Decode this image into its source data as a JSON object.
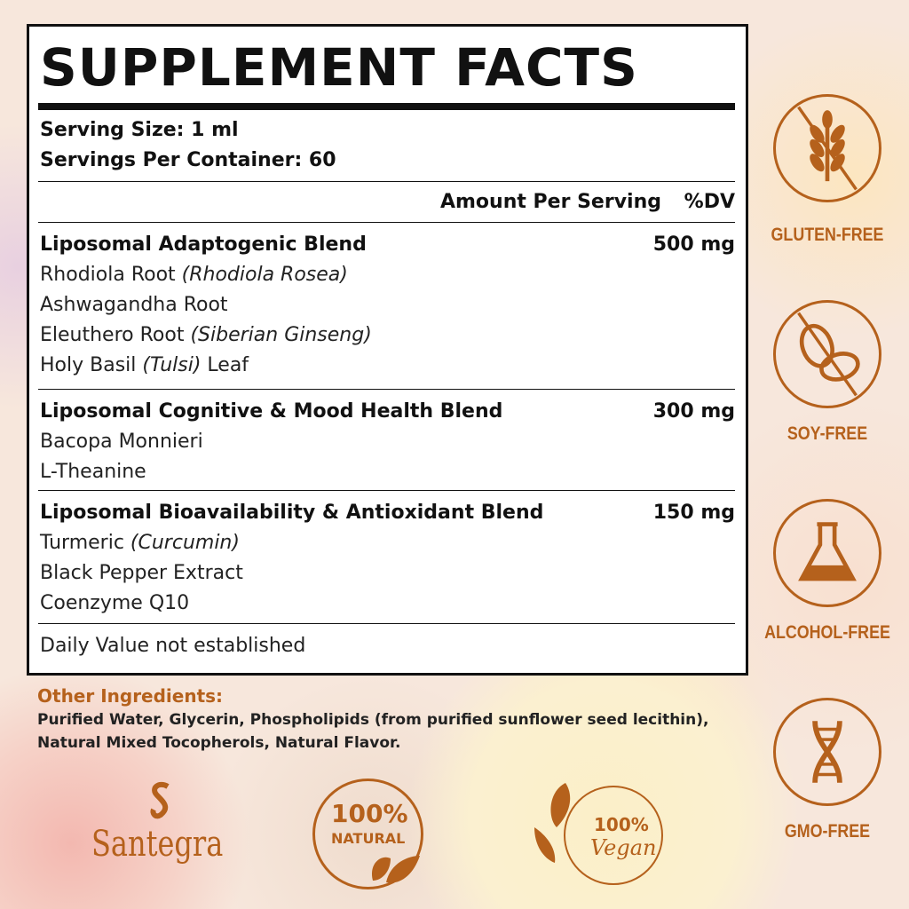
{
  "title": "SUPPLEMENT FACTS",
  "serving_size": "Serving Size: 1 ml",
  "servings_per_container": "Servings Per Container: 60",
  "header": {
    "amount": "Amount Per Serving",
    "dv": "%DV"
  },
  "blends": [
    {
      "name": "Liposomal Adaptogenic Blend",
      "amount": "500 mg",
      "items": [
        {
          "text": "Rhodiola Root ",
          "italic": "(Rhodiola Rosea)",
          "after": ""
        },
        {
          "text": "Ashwagandha Root",
          "italic": "",
          "after": ""
        },
        {
          "text": "Eleuthero Root ",
          "italic": "(Siberian Ginseng)",
          "after": ""
        },
        {
          "text": "Holy Basil ",
          "italic": "(Tulsi)",
          "after": " Leaf"
        }
      ]
    },
    {
      "name": "Liposomal Cognitive & Mood Health Blend",
      "amount": "300 mg",
      "items": [
        {
          "text": "Bacopa Monnieri",
          "italic": "",
          "after": ""
        },
        {
          "text": "L-Theanine",
          "italic": "",
          "after": ""
        }
      ]
    },
    {
      "name": "Liposomal Bioavailability &  Antioxidant Blend",
      "amount": "150 mg",
      "items": [
        {
          "text": "Turmeric ",
          "italic": "(Curcumin)",
          "after": ""
        },
        {
          "text": "Black Pepper Extract",
          "italic": "",
          "after": ""
        },
        {
          "text": "Coenzyme Q10",
          "italic": "",
          "after": ""
        }
      ]
    }
  ],
  "footnote": "Daily Value not established",
  "other_ingredients": {
    "label": "Other Ingredients:",
    "lines": [
      "Purified Water, Glycerin, Phospholipids (from purified sunflower seed lecithin),",
      "Natural Mixed Tocopherols, Natural Flavor."
    ]
  },
  "badges": [
    {
      "label": "GLUTEN-FREE",
      "icon": "wheat-crossed-icon"
    },
    {
      "label": "SOY-FREE",
      "icon": "soybean-crossed-icon"
    },
    {
      "label": "ALCOHOL-FREE",
      "icon": "flask-icon"
    },
    {
      "label": "GMO-FREE",
      "icon": "dna-icon"
    }
  ],
  "logos": {
    "brand": "Santegra",
    "natural": {
      "pct": "100%",
      "word": "NATURAL"
    },
    "vegan": {
      "pct": "100%",
      "word": "Vegan"
    }
  },
  "colors": {
    "accent": "#b5611c",
    "text": "#111111"
  }
}
